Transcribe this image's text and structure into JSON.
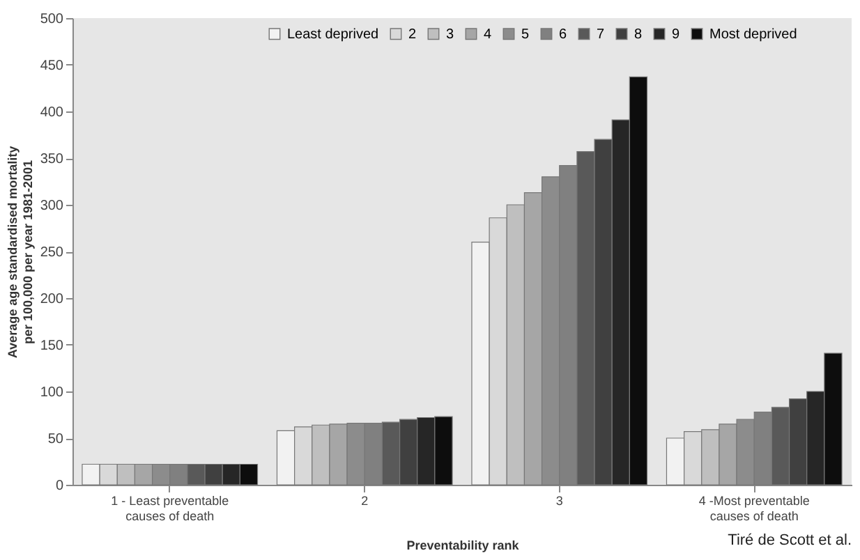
{
  "chart_data": {
    "type": "bar",
    "xlabel": "Preventability rank",
    "ylabel": "Average age standardised mortality\nper 100,000 per year 1981-2001",
    "categories": [
      "1 - Least preventable causes of death",
      "2",
      "3",
      "4 -Most preventable causes of death"
    ],
    "ylim": [
      0,
      500
    ],
    "yticks": [
      0,
      50,
      100,
      150,
      200,
      250,
      300,
      350,
      400,
      450,
      500
    ],
    "grid": false,
    "legend": "top",
    "annotations": [
      "Tiré de Scott et al."
    ],
    "series": [
      {
        "name": "Least deprived",
        "color": "#f2f2f2",
        "values": [
          22,
          58,
          260,
          50
        ]
      },
      {
        "name": "2",
        "color": "#d9d9d9",
        "values": [
          22,
          62,
          286,
          57
        ]
      },
      {
        "name": "3",
        "color": "#bfbfbf",
        "values": [
          22,
          64,
          300,
          59
        ]
      },
      {
        "name": "4",
        "color": "#a6a6a6",
        "values": [
          22,
          65,
          313,
          65
        ]
      },
      {
        "name": "5",
        "color": "#8c8c8c",
        "values": [
          22,
          66,
          330,
          70
        ]
      },
      {
        "name": "6",
        "color": "#808080",
        "values": [
          22,
          66,
          342,
          78
        ]
      },
      {
        "name": "7",
        "color": "#595959",
        "values": [
          22,
          67,
          357,
          83
        ]
      },
      {
        "name": "8",
        "color": "#404040",
        "values": [
          22,
          70,
          370,
          92
        ]
      },
      {
        "name": "9",
        "color": "#262626",
        "values": [
          22,
          72,
          391,
          100
        ]
      },
      {
        "name": "Most deprived",
        "color": "#0d0d0d",
        "values": [
          22,
          73,
          437,
          141
        ]
      }
    ]
  }
}
